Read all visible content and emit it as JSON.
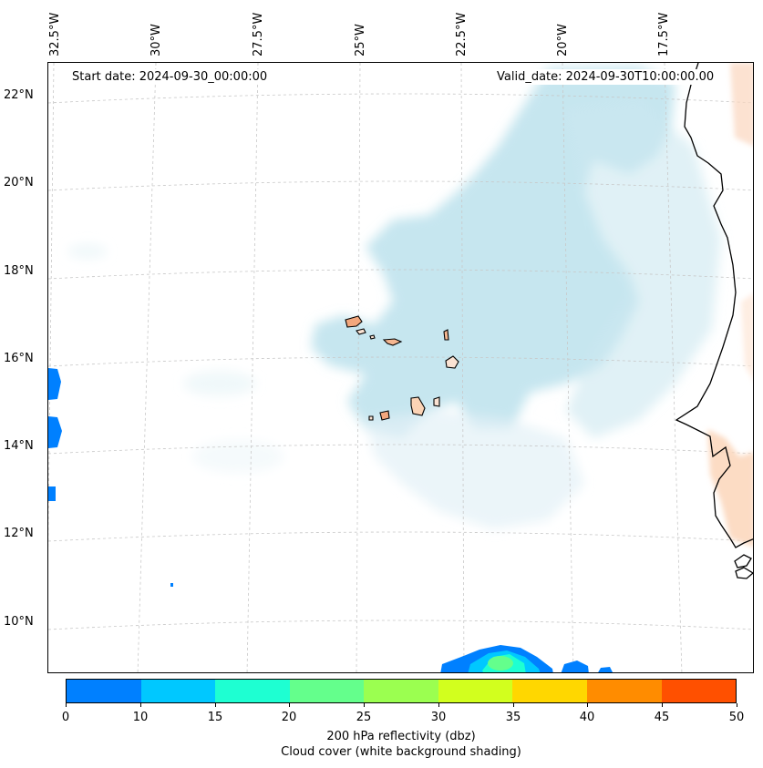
{
  "map": {
    "start_date": "Start date: 2024-09-30_00:00:00",
    "valid_date": "Valid_date: 2024-09-30T10:00:00.00",
    "lon_labels": [
      "32.5°W",
      "30°W",
      "27.5°W",
      "25°W",
      "22.5°W",
      "20°W",
      "17.5°W"
    ],
    "lat_labels": [
      "22°N",
      "20°N",
      "18°N",
      "16°N",
      "14°N",
      "12°N",
      "10°N"
    ],
    "extent": {
      "lon_west": -32.6,
      "lon_east": -15.2,
      "lat_south": 8.9,
      "lat_north": 22.8
    },
    "gridlines": true,
    "islands": [
      "Santo Antão",
      "São Vicente",
      "São Nicolau",
      "Sal",
      "Boa Vista",
      "Santiago",
      "Fogo",
      "Maio"
    ]
  },
  "colorbar": {
    "ticks": [
      "0",
      "10",
      "15",
      "20",
      "25",
      "30",
      "35",
      "40",
      "45",
      "50"
    ],
    "colors": [
      "#0080ff",
      "#00c8ff",
      "#1effd2",
      "#64ff8c",
      "#9bff50",
      "#d2ff1e",
      "#ffd700",
      "#ff8c00",
      "#ff5000"
    ],
    "label_line1": "200 hPa reflectivity (dbz)",
    "label_line2": "Cloud cover (white background shading)"
  }
}
